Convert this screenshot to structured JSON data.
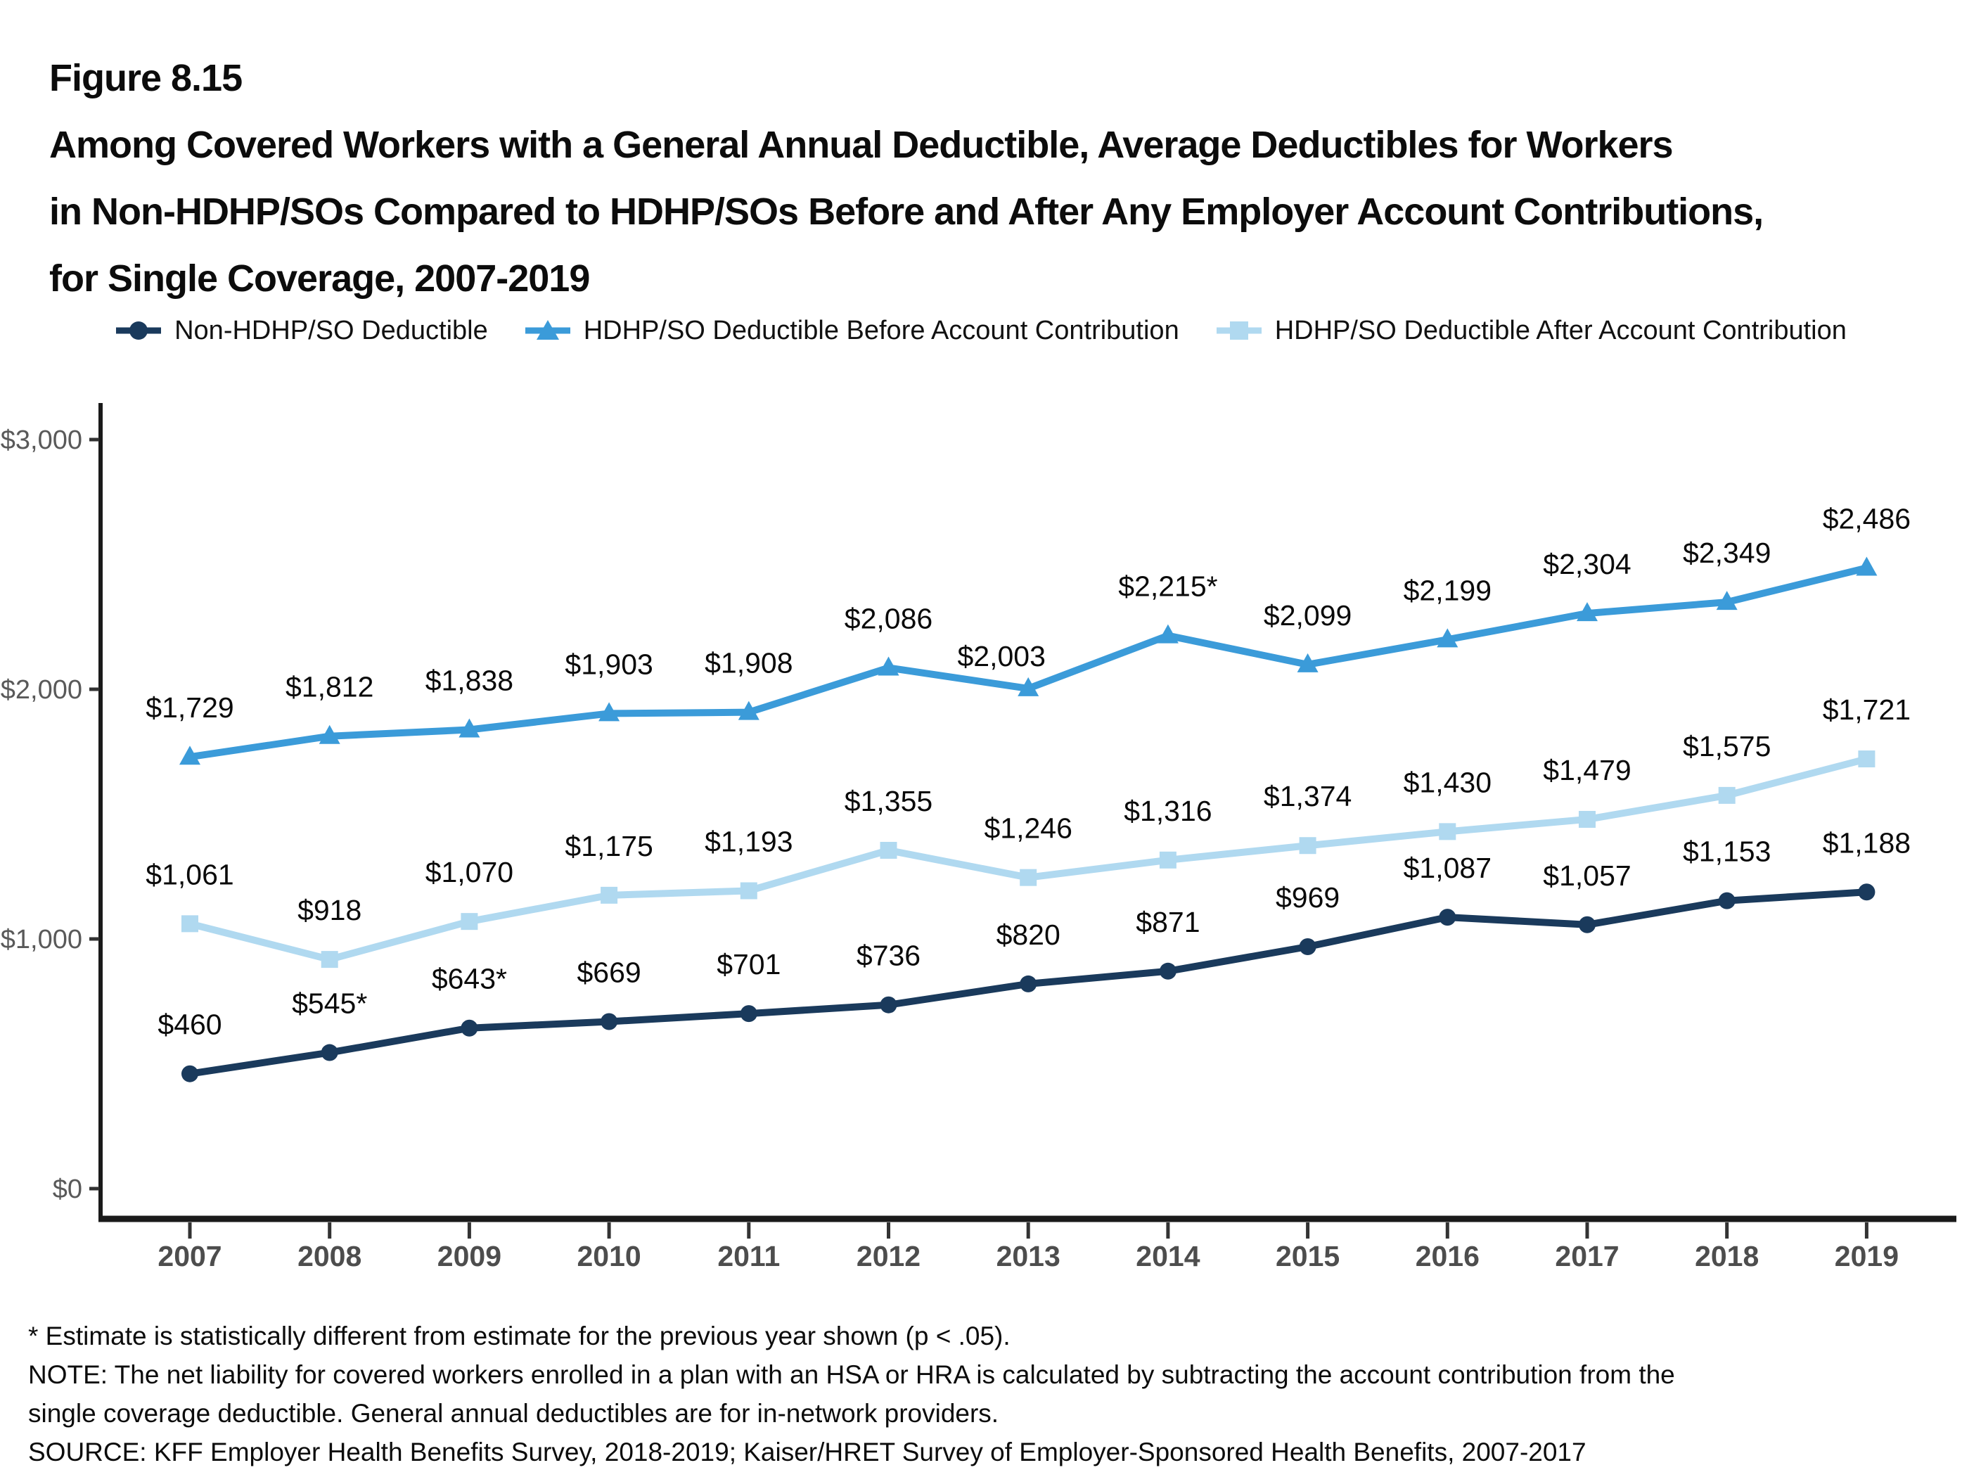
{
  "figure": {
    "label": "Figure 8.15",
    "title_lines": [
      "Among Covered Workers with a General Annual Deductible, Average Deductibles for Workers",
      "in Non-HDHP/SOs Compared to HDHP/SOs Before and After Any Employer Account Contributions,",
      "for Single Coverage, 2007-2019"
    ]
  },
  "chart_data": {
    "type": "line",
    "title": "Among Covered Workers with a General Annual Deductible, Average Deductibles for Workers in Non-HDHP/SOs Compared to HDHP/SOs Before and After Any Employer Account Contributions, for Single Coverage, 2007-2019",
    "xlabel": "",
    "ylabel": "",
    "categories": [
      "2007",
      "2008",
      "2009",
      "2010",
      "2011",
      "2012",
      "2013",
      "2014",
      "2015",
      "2016",
      "2017",
      "2018",
      "2019"
    ],
    "y_ticks": [
      "$0",
      "$1,000",
      "$2,000",
      "$3,000"
    ],
    "y_tick_values": [
      0,
      1000,
      2000,
      3000
    ],
    "ylim": [
      0,
      3000
    ],
    "grid": false,
    "legend_position": "top",
    "series": [
      {
        "name": "Non-HDHP/SO Deductible",
        "marker": "circle",
        "color": "#1a3a5c",
        "values": [
          460,
          545,
          643,
          669,
          701,
          736,
          820,
          871,
          969,
          1087,
          1057,
          1153,
          1188
        ],
        "labels": [
          "$460",
          "$545*",
          "$643*",
          "$669",
          "$701",
          "$736",
          "$820",
          "$871",
          "$969",
          "$1,087",
          "$1,057",
          "$1,153",
          "$1,188"
        ]
      },
      {
        "name": "HDHP/SO Deductible Before Account Contribution",
        "marker": "triangle",
        "color": "#3b9bd9",
        "values": [
          1729,
          1812,
          1838,
          1903,
          1908,
          2086,
          2003,
          2215,
          2099,
          2199,
          2304,
          2349,
          2486
        ],
        "labels": [
          "$1,729",
          "$1,812",
          "$1,838",
          "$1,903",
          "$1,908",
          "$2,086",
          "$2,003",
          "$2,215*",
          "$2,099",
          "$2,199",
          "$2,304",
          "$2,349",
          "$2,486"
        ]
      },
      {
        "name": "HDHP/SO Deductible After Account Contribution",
        "marker": "square",
        "color": "#b0d9f0",
        "values": [
          1061,
          918,
          1070,
          1175,
          1193,
          1355,
          1246,
          1316,
          1374,
          1430,
          1479,
          1575,
          1721
        ],
        "labels": [
          "$1,061",
          "$918",
          "$1,070",
          "$1,175",
          "$1,193",
          "$1,355",
          "$1,246",
          "$1,316",
          "$1,374",
          "$1,430",
          "$1,479",
          "$1,575",
          "$1,721"
        ]
      }
    ]
  },
  "footnotes": {
    "lines": [
      "* Estimate is statistically different from estimate for the previous year shown (p < .05).",
      "NOTE: The net liability for covered workers enrolled in a plan with an HSA or HRA is calculated by subtracting the account contribution from the",
      "single coverage deductible. General annual deductibles are for in-network providers.",
      "SOURCE: KFF Employer Health Benefits Survey, 2018-2019; Kaiser/HRET Survey of Employer-Sponsored Health Benefits, 2007-2017"
    ]
  }
}
